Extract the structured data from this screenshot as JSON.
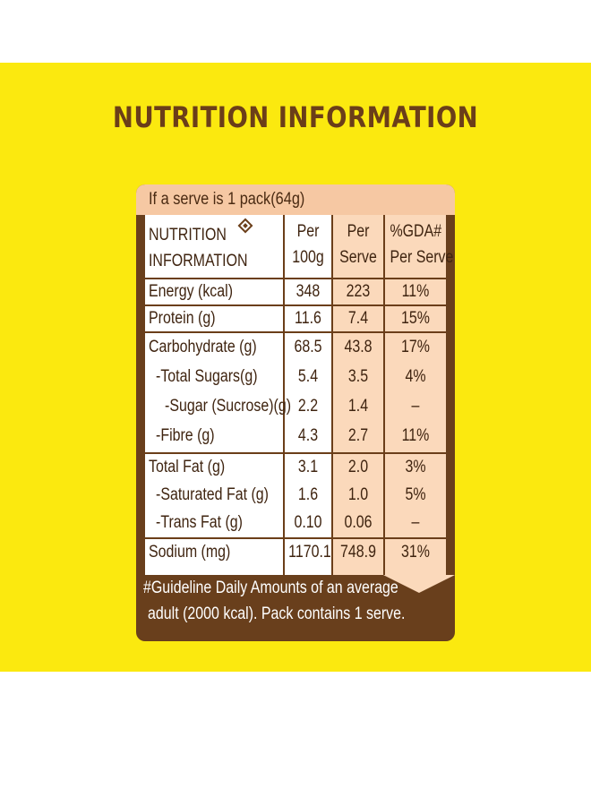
{
  "title": "NUTRITION INFORMATION",
  "serve_info": "If a serve is 1 pack(64g)",
  "table": {
    "header": {
      "col1_line1": "NUTRITION",
      "col1_line2": "INFORMATION",
      "col2_line1": "Per",
      "col2_line2": "100g",
      "col3_line1": "Per",
      "col3_line2": "Serve",
      "col4_line1": "%GDA#",
      "col4_line2": "Per Serve"
    },
    "rows": [
      {
        "label": "Energy (kcal)",
        "per100g": "348",
        "perServe": "223",
        "gda": "11%"
      },
      {
        "label": "Protein (g)",
        "per100g": "11.6",
        "perServe": "7.4",
        "gda": "15%"
      },
      {
        "label": "Carbohydrate (g)",
        "per100g": "68.5",
        "perServe": "43.8",
        "gda": "17%"
      },
      {
        "label": "-Total Sugars(g)",
        "per100g": "5.4",
        "perServe": "3.5",
        "gda": "4%"
      },
      {
        "label": "-Sugar (Sucrose)(g)",
        "per100g": "2.2",
        "perServe": "1.4",
        "gda": "–"
      },
      {
        "label": "-Fibre (g)",
        "per100g": "4.3",
        "perServe": "2.7",
        "gda": "11%"
      },
      {
        "label": "Total Fat (g)",
        "per100g": "3.1",
        "perServe": "2.0",
        "gda": "3%"
      },
      {
        "label": "-Saturated Fat (g)",
        "per100g": "1.6",
        "perServe": "1.0",
        "gda": "5%"
      },
      {
        "label": "-Trans Fat (g)",
        "per100g": "0.10",
        "perServe": "0.06",
        "gda": "–"
      },
      {
        "label": "Sodium (mg)",
        "per100g": "1170.1",
        "perServe": "748.9",
        "gda": "31%"
      }
    ]
  },
  "footnote": {
    "line1": "#Guideline Daily Amounts of an average",
    "line2": "adult (2000 kcal).  Pack contains 1 serve."
  },
  "colors": {
    "yellow": "#fbe90f",
    "brown": "#6b3e19",
    "peach": "#fbd9bb"
  }
}
